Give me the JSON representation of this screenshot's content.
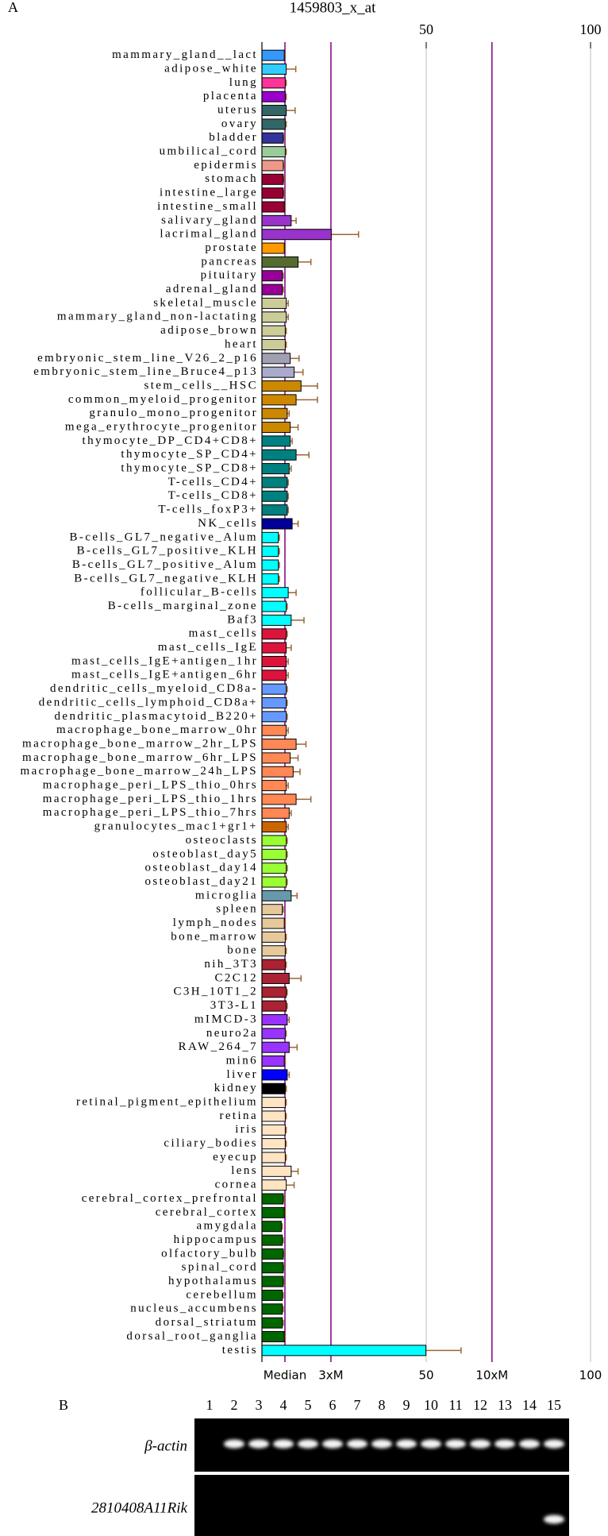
{
  "chart_data": {
    "type": "bar",
    "panel_label": "A",
    "title": "1459803_x_at",
    "categories": [
      "mammary_gland__lact",
      "adipose_white",
      "lung",
      "placenta",
      "uterus",
      "ovary",
      "bladder",
      "umbilical_cord",
      "epidermis",
      "stomach",
      "intestine_large",
      "intestine_small",
      "salivary_gland",
      "lacrimal_gland",
      "prostate",
      "pancreas",
      "pituitary",
      "adrenal_gland",
      "skeletal_muscle",
      "mammary_gland_non-lactating",
      "adipose_brown",
      "heart",
      "embryonic_stem_line_V26_2_p16",
      "embryonic_stem_line_Bruce4_p13",
      "stem_cells__HSC",
      "common_myeloid_progenitor",
      "granulo_mono_progenitor",
      "mega_erythrocyte_progenitor",
      "thymocyte_DP_CD4+CD8+",
      "thymocyte_SP_CD4+",
      "thymocyte_SP_CD8+",
      "T-cells_CD4+",
      "T-cells_CD8+",
      "T-cells_foxP3+",
      "NK_cells",
      "B-cells_GL7_negative_Alum",
      "B-cells_GL7_positive_KLH",
      "B-cells_GL7_positive_Alum",
      "B-cells_GL7_negative_KLH",
      "follicular_B-cells",
      "B-cells_marginal_zone",
      "Baf3",
      "mast_cells",
      "mast_cells_IgE",
      "mast_cells_IgE+antigen_1hr",
      "mast_cells_IgE+antigen_6hr",
      "dendritic_cells_myeloid_CD8a-",
      "dendritic_cells_lymphoid_CD8a+",
      "dendritic_plasmacytoid_B220+",
      "macrophage_bone_marrow_0hr",
      "macrophage_bone_marrow_2hr_LPS",
      "macrophage_bone_marrow_6hr_LPS",
      "macrophage_bone_marrow_24h_LPS",
      "macrophage_peri_LPS_thio_0hrs",
      "macrophage_peri_LPS_thio_1hrs",
      "macrophage_peri_LPS_thio_7hrs",
      "granulocytes_mac1+gr1+",
      "osteoclasts",
      "osteoblast_day5",
      "osteoblast_day14",
      "osteoblast_day21",
      "microglia",
      "spleen",
      "lymph_nodes",
      "bone_marrow",
      "bone",
      "nih_3T3",
      "C2C12",
      "C3H_10T1_2",
      "3T3-L1",
      "mIMCD-3",
      "neuro2a",
      "RAW_264_7",
      "min6",
      "liver",
      "kidney",
      "retinal_pigment_epithelium",
      "retina",
      "iris",
      "ciliary_bodies",
      "eyecup",
      "lens",
      "cornea",
      "cerebral_cortex_prefrontal",
      "cerebral_cortex",
      "amygdala",
      "hippocampus",
      "olfactory_bulb",
      "spinal_cord",
      "hypothalamus",
      "cerebellum",
      "nucleus_accumbens",
      "dorsal_striatum",
      "dorsal_root_ganglia",
      "testis"
    ],
    "values": [
      6.8,
      7.4,
      7.1,
      7.1,
      7.4,
      7.1,
      6.5,
      7.1,
      6.5,
      6.5,
      6.5,
      6.8,
      8.9,
      21.1,
      6.8,
      11,
      6.2,
      6.2,
      7.4,
      7.4,
      7.1,
      7.1,
      8.6,
      9.8,
      11.9,
      10.4,
      7.7,
      8.6,
      8.6,
      10.4,
      8.3,
      7.7,
      7.7,
      7.7,
      9.2,
      5,
      5,
      5,
      5,
      8,
      7.4,
      8.9,
      7.4,
      7.4,
      7.4,
      7.4,
      7.4,
      7.4,
      7.4,
      7.4,
      10.4,
      8.6,
      9.5,
      7.4,
      10.4,
      8.3,
      7.4,
      7.4,
      7.4,
      7.4,
      7.4,
      8.9,
      6.2,
      6.8,
      7.1,
      7.1,
      7.1,
      8.3,
      7.4,
      7.4,
      7.7,
      7.1,
      8.3,
      6.8,
      7.7,
      7.1,
      7.1,
      7.1,
      7.1,
      7.1,
      7.1,
      8.9,
      7.4,
      6.5,
      6.8,
      5.9,
      6.2,
      6.5,
      6.5,
      6.5,
      6.2,
      6.2,
      6.2,
      6.8,
      49.9
    ],
    "errors": [
      0.3,
      2.9,
      0.3,
      0.3,
      2.7,
      0.3,
      0.3,
      0.3,
      0.3,
      0.3,
      0.3,
      0.3,
      1.5,
      8.3,
      0.3,
      3.9,
      0.3,
      0.3,
      0.6,
      0.6,
      0.3,
      0.3,
      2.7,
      2.7,
      5,
      6.5,
      0.6,
      2.4,
      0.6,
      3.9,
      0.6,
      0.3,
      0.3,
      0.3,
      1.8,
      0.3,
      0.3,
      0.3,
      0.3,
      2.4,
      0.3,
      3.9,
      0.3,
      1.5,
      0.6,
      0.6,
      0.3,
      0.3,
      0.3,
      0.6,
      3,
      2.4,
      2.1,
      0.6,
      4.5,
      0.6,
      0.6,
      0.3,
      0.3,
      0.3,
      0.3,
      1.8,
      0.3,
      0.3,
      0.3,
      0.3,
      0.3,
      3.6,
      0.3,
      0.3,
      0.6,
      0.3,
      2.4,
      0.3,
      0.6,
      0.3,
      0.3,
      0.3,
      0.3,
      0.3,
      0.3,
      2.1,
      2.4,
      0.3,
      0.3,
      0.3,
      0.3,
      0.3,
      0.3,
      0.3,
      0.3,
      0.3,
      0.3,
      0.3,
      10.7
    ],
    "colors": [
      "#3399ff",
      "#33ccff",
      "#ff3399",
      "#9900cc",
      "#336666",
      "#336666",
      "#333399",
      "#99cc99",
      "#ee9988",
      "#990033",
      "#990033",
      "#990033",
      "#9933cc",
      "#9933cc",
      "#ff9900",
      "#556b2f",
      "#990099",
      "#990099",
      "#cccc99",
      "#cccc99",
      "#cccc99",
      "#cccc99",
      "#a0a0b4",
      "#aaaacc",
      "#cc8800",
      "#cc8800",
      "#cc8800",
      "#cc8800",
      "#008080",
      "#008080",
      "#008080",
      "#008080",
      "#008080",
      "#008080",
      "#000099",
      "#00ffff",
      "#00ffff",
      "#00ffff",
      "#00ffff",
      "#00ffff",
      "#00ffff",
      "#00ffff",
      "#dc143c",
      "#dc143c",
      "#dc143c",
      "#dc143c",
      "#6699ff",
      "#6699ff",
      "#6699ff",
      "#ff8855",
      "#ff8855",
      "#ff8855",
      "#ff8855",
      "#ff8855",
      "#ff8855",
      "#ff8855",
      "#cc6600",
      "#99ff33",
      "#99ff33",
      "#99ff33",
      "#99ff33",
      "#6699aa",
      "#e6c89b",
      "#e6c89b",
      "#e6c89b",
      "#e6c89b",
      "#aa2233",
      "#aa2233",
      "#aa2233",
      "#aa2233",
      "#9933ff",
      "#9933ff",
      "#9933ff",
      "#9933ff",
      "#0000ff",
      "#000000",
      "#ffe4c4",
      "#ffe4c4",
      "#ffe4c4",
      "#ffe4c4",
      "#ffe4c4",
      "#ffe4c4",
      "#ffe4c4",
      "#006600",
      "#006600",
      "#006600",
      "#006600",
      "#006600",
      "#006600",
      "#006600",
      "#006600",
      "#006600",
      "#006600",
      "#006600",
      "#00ffff"
    ],
    "error_color": "#996633",
    "xlim": [
      0,
      100
    ],
    "top_xticks": [
      50,
      100
    ],
    "xticks": [
      {
        "value": 7,
        "label": "Median"
      },
      {
        "value": 21,
        "label": "3xM"
      },
      50,
      {
        "value": 70,
        "label": "10xM"
      },
      100
    ],
    "grid_color": "#c8c8c8",
    "reference_color": "#800080"
  },
  "gel": {
    "label": "B",
    "lanes": [
      "1",
      "2",
      "3",
      "4",
      "5",
      "6",
      "7",
      "8",
      "9",
      "10",
      "11",
      "12",
      "13",
      "14",
      "15"
    ],
    "rows": [
      "β-actin",
      "2810408A11Rik"
    ]
  }
}
